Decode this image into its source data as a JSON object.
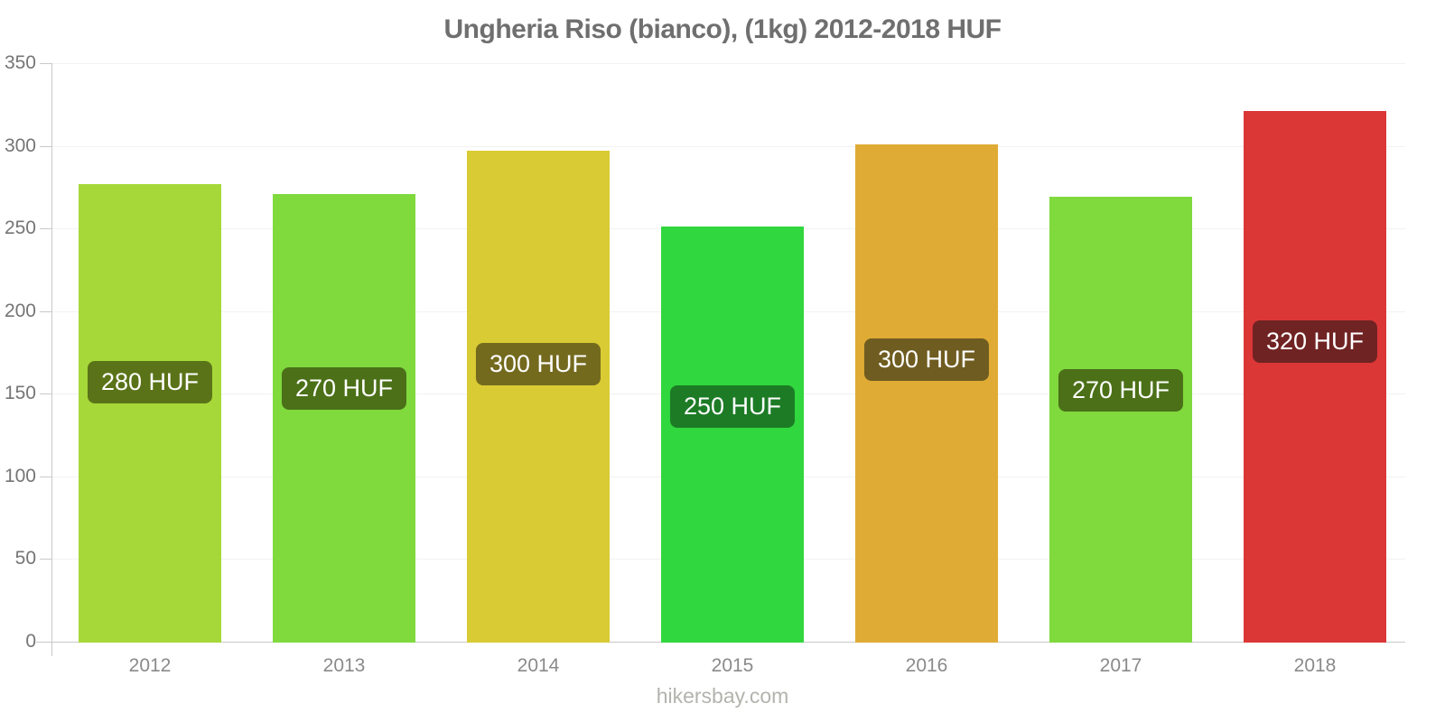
{
  "watermark": "hikersbay.com",
  "chart_data": {
    "type": "bar",
    "title": "Ungheria Riso (bianco), (1kg) 2012-2018 HUF",
    "xlabel": "",
    "ylabel": "",
    "categories": [
      "2012",
      "2013",
      "2014",
      "2015",
      "2016",
      "2017",
      "2018"
    ],
    "values": [
      277,
      271,
      297,
      251,
      301,
      269,
      321
    ],
    "bar_labels": [
      "280 HUF",
      "270 HUF",
      "300 HUF",
      "250 HUF",
      "300 HUF",
      "270 HUF",
      "320 HUF"
    ],
    "unit": "HUF",
    "ylim": [
      0,
      350
    ],
    "yticks": [
      0,
      50,
      100,
      150,
      200,
      250,
      300,
      350
    ],
    "grid": true,
    "legend": false,
    "bar_colors": [
      "#a6d839",
      "#80d93d",
      "#d9cb34",
      "#31d73e",
      "#dfab35",
      "#80d93d",
      "#db3737"
    ],
    "label_bg_colors": [
      "#5a7318",
      "#4b7018",
      "#746a1e",
      "#1d7b26",
      "#6f5c20",
      "#4b7018",
      "#702323"
    ]
  },
  "colors": {
    "background": "#ffffff",
    "title_text": "#6f6f6f",
    "axis_line": "#c9c9c9",
    "gridline": "#f2f2f2",
    "tick_text": "#757575",
    "category_text": "#8a8a8a",
    "badge_text": "#ffffff",
    "watermark_text": "#b3b3ae"
  }
}
